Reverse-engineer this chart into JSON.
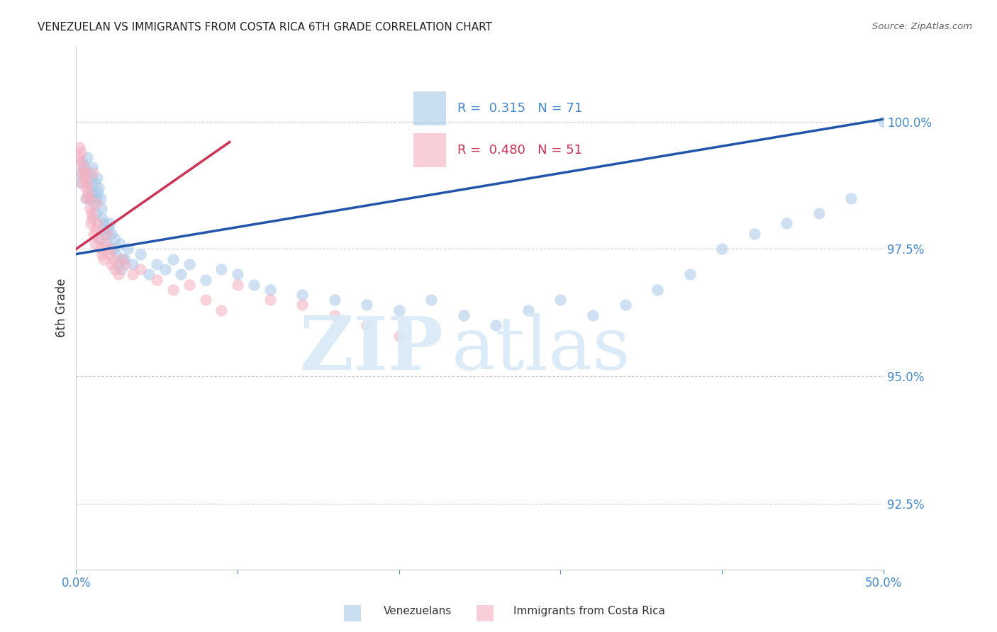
{
  "title": "VENEZUELAN VS IMMIGRANTS FROM COSTA RICA 6TH GRADE CORRELATION CHART",
  "source": "Source: ZipAtlas.com",
  "label_blue": "Venezuelans",
  "label_pink": "Immigrants from Costa Rica",
  "ylabel": "6th Grade",
  "R_blue": 0.315,
  "N_blue": 71,
  "R_pink": 0.48,
  "N_pink": 51,
  "xlim": [
    0.0,
    50.0
  ],
  "ylim": [
    91.2,
    101.5
  ],
  "yticks": [
    92.5,
    95.0,
    97.5,
    100.0
  ],
  "ytick_labels": [
    "92.5%",
    "95.0%",
    "97.5%",
    "100.0%"
  ],
  "xticks": [
    0.0,
    10.0,
    20.0,
    30.0,
    40.0,
    50.0
  ],
  "xtick_labels": [
    "0.0%",
    "",
    "",
    "",
    "",
    "50.0%"
  ],
  "blue_color": "#a8c8e8",
  "pink_color": "#f4b0c0",
  "blue_line_color": "#2255aa",
  "pink_line_color": "#cc3355",
  "axis_label_color": "#4488cc",
  "grid_color": "#cccccc",
  "watermark_color": "#d8eaf8",
  "blue_scatter_x": [
    0.2,
    0.3,
    0.4,
    0.5,
    0.6,
    0.7,
    0.8,
    0.85,
    0.9,
    0.95,
    1.0,
    1.05,
    1.1,
    1.15,
    1.2,
    1.25,
    1.3,
    1.4,
    1.5,
    1.55,
    1.6,
    1.65,
    1.7,
    1.8,
    1.9,
    2.0,
    2.1,
    2.2,
    2.3,
    2.5,
    2.7,
    2.9,
    3.2,
    3.5,
    4.0,
    4.5,
    5.0,
    5.5,
    6.0,
    6.5,
    7.0,
    8.0,
    9.0,
    10.0,
    11.0,
    12.0,
    14.0,
    16.0,
    18.0,
    20.0,
    22.0,
    24.0,
    26.0,
    28.0,
    30.0,
    32.0,
    34.0,
    36.0,
    38.0,
    40.0,
    42.0,
    44.0,
    46.0,
    48.0,
    50.0,
    1.35,
    1.45,
    2.4,
    2.6,
    2.8,
    3.0
  ],
  "blue_scatter_y": [
    99.0,
    98.8,
    99.2,
    99.1,
    98.5,
    99.3,
    99.0,
    98.7,
    98.5,
    98.9,
    99.1,
    98.6,
    98.4,
    98.8,
    98.2,
    98.5,
    98.9,
    98.7,
    98.5,
    98.3,
    98.1,
    97.9,
    98.0,
    97.8,
    97.6,
    97.9,
    98.0,
    97.8,
    97.5,
    97.4,
    97.6,
    97.3,
    97.5,
    97.2,
    97.4,
    97.0,
    97.2,
    97.1,
    97.3,
    97.0,
    97.2,
    96.9,
    97.1,
    97.0,
    96.8,
    96.7,
    96.6,
    96.5,
    96.4,
    96.3,
    96.5,
    96.2,
    96.0,
    96.3,
    96.5,
    96.2,
    96.4,
    96.7,
    97.0,
    97.5,
    97.8,
    98.0,
    98.2,
    98.5,
    100.0,
    98.6,
    97.7,
    97.7,
    97.2,
    97.1,
    97.3
  ],
  "pink_scatter_x": [
    0.15,
    0.2,
    0.25,
    0.3,
    0.35,
    0.4,
    0.45,
    0.5,
    0.55,
    0.6,
    0.65,
    0.7,
    0.75,
    0.8,
    0.85,
    0.9,
    0.95,
    1.0,
    1.05,
    1.1,
    1.15,
    1.2,
    1.3,
    1.4,
    1.5,
    1.6,
    1.7,
    1.8,
    1.9,
    2.0,
    2.2,
    2.4,
    2.6,
    2.8,
    3.0,
    3.5,
    4.0,
    5.0,
    6.0,
    7.0,
    8.0,
    9.0,
    10.0,
    12.0,
    14.0,
    16.0,
    18.0,
    20.0,
    1.25,
    2.1,
    2.3
  ],
  "pink_scatter_y": [
    99.3,
    99.5,
    99.2,
    99.4,
    99.0,
    98.8,
    99.1,
    98.9,
    99.0,
    98.7,
    98.5,
    98.8,
    98.6,
    98.5,
    98.3,
    98.0,
    98.2,
    98.1,
    99.0,
    97.8,
    97.6,
    97.9,
    98.0,
    97.7,
    97.5,
    97.4,
    97.3,
    97.6,
    97.8,
    97.4,
    97.2,
    97.1,
    97.0,
    97.3,
    97.2,
    97.0,
    97.1,
    96.9,
    96.7,
    96.8,
    96.5,
    96.3,
    96.8,
    96.5,
    96.4,
    96.2,
    96.0,
    95.8,
    98.4,
    97.5,
    97.3
  ],
  "blue_line_x": [
    0.0,
    50.0
  ],
  "blue_line_y": [
    97.4,
    100.05
  ],
  "pink_line_x": [
    0.0,
    9.5
  ],
  "pink_line_y": [
    97.5,
    99.6
  ]
}
